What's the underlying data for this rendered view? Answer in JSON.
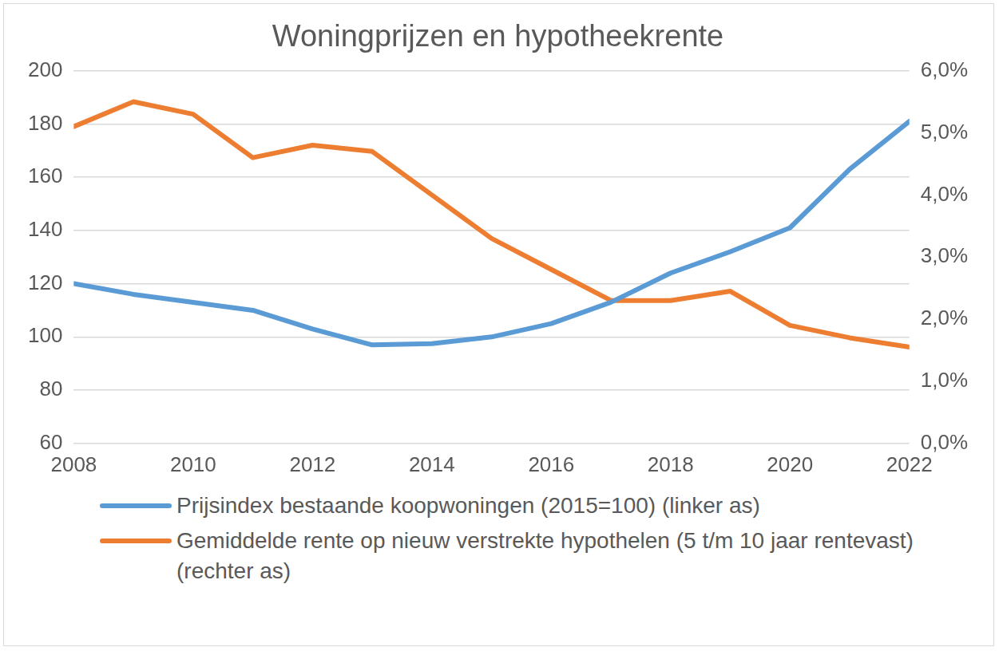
{
  "chart_data": {
    "type": "line",
    "title": "Woningprijzen en hypotheekrente",
    "x": [
      2008,
      2009,
      2010,
      2011,
      2012,
      2013,
      2014,
      2015,
      2016,
      2017,
      2018,
      2019,
      2020,
      2021,
      2022
    ],
    "xlim": [
      2008,
      2022
    ],
    "xticks": [
      2008,
      2010,
      2012,
      2014,
      2016,
      2018,
      2020,
      2022
    ],
    "ylim": [
      60,
      200
    ],
    "yticks": [
      60,
      80,
      100,
      120,
      140,
      160,
      180,
      200
    ],
    "y2lim": [
      0,
      6
    ],
    "y2ticks": [
      {
        "value": 0,
        "label": "0,0%"
      },
      {
        "value": 1,
        "label": "1,0%"
      },
      {
        "value": 2,
        "label": "2,0%"
      },
      {
        "value": 3,
        "label": "3,0%"
      },
      {
        "value": 4,
        "label": "4,0%"
      },
      {
        "value": 5,
        "label": "5,0%"
      },
      {
        "value": 6,
        "label": "6,0%"
      }
    ],
    "grid": true,
    "legend": "bottom",
    "series": [
      {
        "name": "Prijsindex bestaande koopwoningen (2015=100) (linker as)",
        "color": "#5b9bd5",
        "values": [
          120,
          116,
          113,
          110,
          103,
          97,
          97.5,
          100,
          105,
          113,
          124,
          132,
          141,
          163,
          181
        ]
      },
      {
        "name": "Gemiddelde rente op nieuw verstrekte hypothelen (5 t/m 10 jaar rentevast) (rechter as)",
        "color": "#ed7d31",
        "axis": "y2",
        "values": [
          5.1,
          5.5,
          5.3,
          4.6,
          4.8,
          4.7,
          4.0,
          3.3,
          2.8,
          2.3,
          2.3,
          2.45,
          1.9,
          1.7,
          1.55
        ]
      }
    ]
  }
}
